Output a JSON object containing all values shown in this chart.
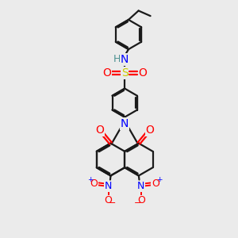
{
  "background_color": "#ebebeb",
  "bond_color": "#1a1a1a",
  "N_color": "#0000ff",
  "O_color": "#ff0000",
  "S_color": "#cccc00",
  "H_color": "#4a9090",
  "line_width": 1.6,
  "figsize": [
    3.0,
    3.0
  ],
  "dpi": 100,
  "xlim": [
    0,
    10
  ],
  "ylim": [
    0,
    10
  ]
}
